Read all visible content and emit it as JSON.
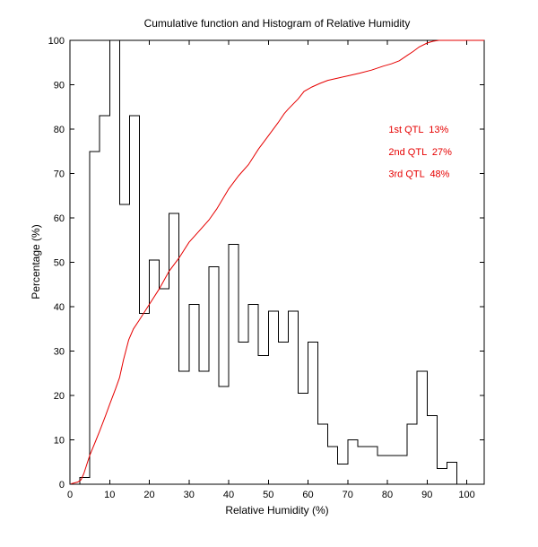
{
  "chart_data": {
    "type": "mixed",
    "title": "Cumulative function and Histogram of Relative Humidity",
    "xlabel": "Relative Humidity (%)",
    "ylabel": "Percentage (%)",
    "xlim": [
      0,
      104.4
    ],
    "ylim": [
      0,
      100
    ],
    "xticks": [
      0,
      10,
      20,
      30,
      40,
      50,
      60,
      70,
      80,
      90,
      100
    ],
    "yticks": [
      0,
      10,
      20,
      30,
      40,
      50,
      60,
      70,
      80,
      90,
      100
    ],
    "grid": false,
    "legend": "none",
    "background": "#ffffff",
    "axis_color": "#000000",
    "series": [
      {
        "name": "relative-humidity-histogram",
        "type": "bar",
        "style": "stairs-outline",
        "color": "#000000",
        "bin_start": 0,
        "bin_width": 2.5,
        "values": [
          0,
          1.5,
          75,
          83,
          100,
          63,
          83,
          38.5,
          50.5,
          44,
          61,
          25.5,
          40.5,
          25.5,
          49,
          22,
          54,
          32,
          40.5,
          29,
          39,
          32,
          39,
          20.5,
          32,
          13.5,
          8.5,
          4.5,
          10,
          8.5,
          8.5,
          6.5,
          6.5,
          6.5,
          13.5,
          25.5,
          15.5,
          3.5,
          5,
          0
        ]
      },
      {
        "name": "cumulative-distribution",
        "type": "line",
        "color": "#e60000",
        "points": [
          [
            0.3,
            0.1
          ],
          [
            2,
            0.5
          ],
          [
            2.8,
            1
          ],
          [
            3.5,
            2.4
          ],
          [
            5,
            6.5
          ],
          [
            6.5,
            9.8
          ],
          [
            7.5,
            12
          ],
          [
            9,
            15.5
          ],
          [
            10,
            18
          ],
          [
            11.5,
            21.5
          ],
          [
            12.5,
            24
          ],
          [
            13.5,
            28
          ],
          [
            14.8,
            32.5
          ],
          [
            16,
            35
          ],
          [
            17.5,
            37
          ],
          [
            20,
            40.5
          ],
          [
            22.5,
            44
          ],
          [
            25,
            48
          ],
          [
            27.5,
            51
          ],
          [
            30,
            54.5
          ],
          [
            32.5,
            57
          ],
          [
            35,
            59.5
          ],
          [
            37,
            62
          ],
          [
            40,
            66.5
          ],
          [
            42.5,
            69.5
          ],
          [
            45,
            72
          ],
          [
            47.5,
            75.5
          ],
          [
            50,
            78.5
          ],
          [
            52.5,
            81.5
          ],
          [
            54,
            83.5
          ],
          [
            55,
            84.5
          ],
          [
            57.5,
            86.8
          ],
          [
            59,
            88.5
          ],
          [
            61,
            89.5
          ],
          [
            63,
            90.3
          ],
          [
            65,
            91
          ],
          [
            68,
            91.6
          ],
          [
            70,
            92
          ],
          [
            73,
            92.6
          ],
          [
            76,
            93.3
          ],
          [
            79,
            94.2
          ],
          [
            81,
            94.7
          ],
          [
            83,
            95.4
          ],
          [
            85,
            96.6
          ],
          [
            86.5,
            97.5
          ],
          [
            88,
            98.5
          ],
          [
            90,
            99.4
          ],
          [
            91.5,
            99.8
          ],
          [
            93,
            100
          ],
          [
            104.4,
            100
          ]
        ]
      }
    ],
    "annotations": [
      {
        "text": "1st QTL  13%",
        "x": 80.3,
        "y": 80,
        "color": "#e60000"
      },
      {
        "text": "2nd QTL  27%",
        "x": 80.3,
        "y": 75,
        "color": "#e60000"
      },
      {
        "text": "3rd QTL  48%",
        "x": 80.3,
        "y": 70,
        "color": "#e60000"
      }
    ]
  }
}
